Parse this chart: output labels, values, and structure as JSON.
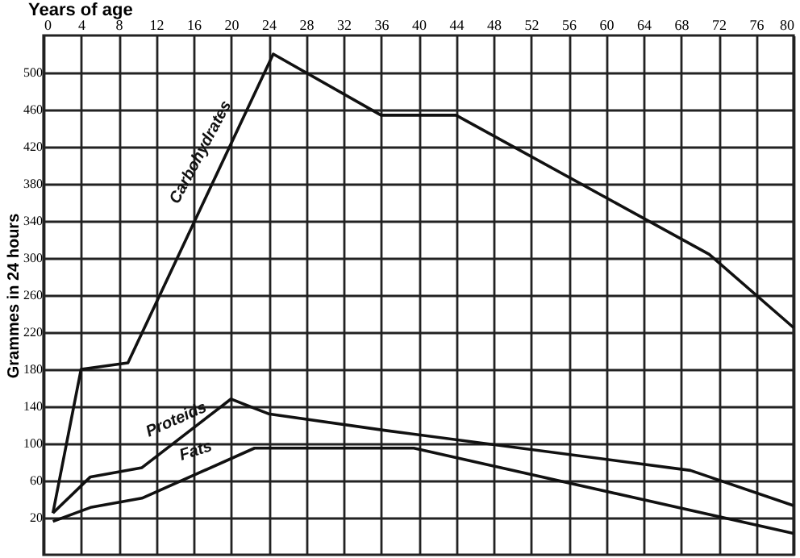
{
  "chart_data": {
    "type": "line",
    "xlabel": "Years of age",
    "ylabel": "Grammes in 24 hours",
    "xlim": [
      0,
      80
    ],
    "xticks": [
      0,
      4,
      8,
      12,
      16,
      20,
      24,
      28,
      32,
      36,
      40,
      44,
      48,
      52,
      56,
      60,
      64,
      68,
      72,
      76,
      80
    ],
    "ylim": [
      -20,
      540
    ],
    "yticks": [
      20,
      60,
      100,
      140,
      180,
      220,
      260,
      300,
      340,
      380,
      420,
      460,
      500
    ],
    "grid": true,
    "marker": "none",
    "line_style": "solid",
    "series": [
      {
        "name": "Carbohydrates",
        "color": "#111111",
        "x": [
          1,
          4,
          9,
          24.5,
          36,
          44,
          71,
          80
        ],
        "values": [
          25,
          180,
          187,
          520,
          454,
          454,
          304,
          225
        ]
      },
      {
        "name": "Proteids",
        "color": "#111111",
        "x": [
          1,
          5,
          10.5,
          20,
          24,
          36.5,
          69,
          80
        ],
        "values": [
          25,
          64,
          74,
          148,
          132,
          114,
          71,
          33
        ]
      },
      {
        "name": "Fats",
        "color": "#111111",
        "x": [
          1,
          5,
          10.5,
          22.5,
          39.5,
          80
        ],
        "values": [
          16,
          31,
          41,
          95,
          95,
          3
        ]
      }
    ]
  }
}
